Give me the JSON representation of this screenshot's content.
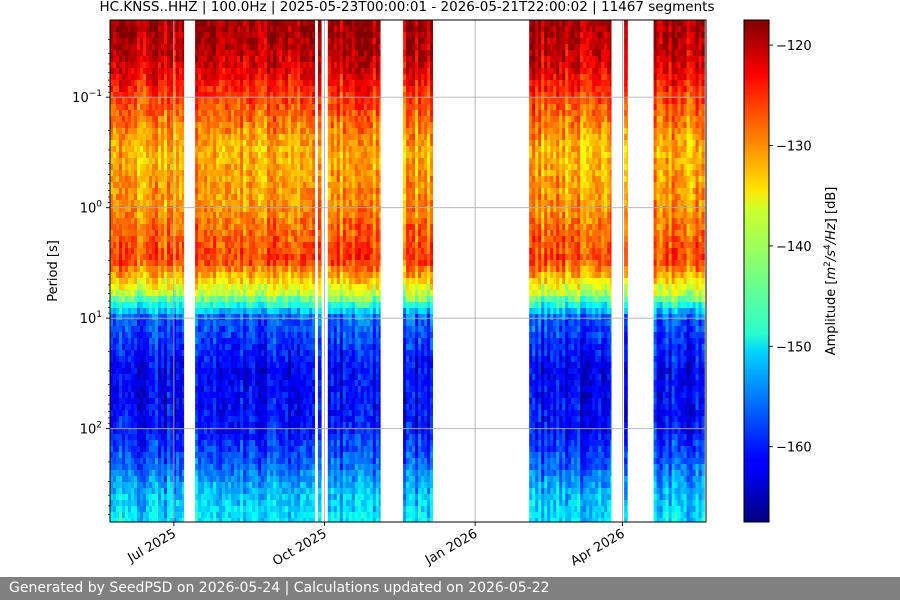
{
  "chart_data": {
    "type": "heatmap",
    "title": "HC.KNSS..HHZ | 100.0Hz | 2025-05-23T00:00:01 - 2026-05-21T22:00:02 | 11467 segments",
    "xlabel": "",
    "ylabel": "Period [s]",
    "colorbar_label": "Amplitude [m²/s⁴/Hz] [dB]",
    "colorbar_label_parts": {
      "pre": "Amplitude [",
      "m": "m",
      "exp2": "2",
      "slash1": "/",
      "s": "s",
      "exp4": "4",
      "slash2": "/",
      "hz": "Hz",
      "post": "] [dB]"
    },
    "xlim": [
      "2025-05-23",
      "2026-05-22"
    ],
    "ylim": [
      700,
      0.02
    ],
    "y_scale": "log",
    "clim": [
      -167.5,
      -117.5
    ],
    "colormap": "jet",
    "grid": true,
    "x_ticks": [
      {
        "date": "2025-07-01",
        "label": "Jul 2025"
      },
      {
        "date": "2025-10-01",
        "label": "Oct 2025"
      },
      {
        "date": "2026-01-01",
        "label": "Jan 2026"
      },
      {
        "date": "2026-04-01",
        "label": "Apr 2026"
      }
    ],
    "y_ticks": [
      {
        "value": 0.1,
        "base": "10",
        "exp": "−1"
      },
      {
        "value": 1,
        "base": "10",
        "exp": "0"
      },
      {
        "value": 10,
        "base": "10",
        "exp": "1"
      },
      {
        "value": 100,
        "base": "10",
        "exp": "2"
      }
    ],
    "colorbar_ticks": [
      -120,
      -130,
      -140,
      -150,
      -160
    ],
    "colorbar_tick_labels": [
      "−120",
      "−130",
      "−140",
      "−150",
      "−160"
    ],
    "data_periods": [
      {
        "start": "2025-05-23",
        "end": "2025-07-07"
      },
      {
        "start": "2025-07-14",
        "end": "2025-09-25"
      },
      {
        "start": "2025-09-27",
        "end": "2025-09-29"
      },
      {
        "start": "2025-10-03",
        "end": "2025-11-04"
      },
      {
        "start": "2025-11-18",
        "end": "2025-12-06"
      },
      {
        "start": "2026-02-03",
        "end": "2026-03-25"
      },
      {
        "start": "2026-04-02",
        "end": "2026-04-04"
      },
      {
        "start": "2026-04-20",
        "end": "2026-05-21"
      }
    ],
    "amplitude_profile": [
      {
        "period": 0.02,
        "amplitude_db": -119
      },
      {
        "period": 0.05,
        "amplitude_db": -122
      },
      {
        "period": 0.1,
        "amplitude_db": -127
      },
      {
        "period": 0.3,
        "amplitude_db": -133
      },
      {
        "period": 1,
        "amplitude_db": -131
      },
      {
        "period": 3,
        "amplitude_db": -127
      },
      {
        "period": 6,
        "amplitude_db": -140
      },
      {
        "period": 10,
        "amplitude_db": -157
      },
      {
        "period": 30,
        "amplitude_db": -162
      },
      {
        "period": 100,
        "amplitude_db": -161
      },
      {
        "period": 200,
        "amplitude_db": -157
      },
      {
        "period": 400,
        "amplitude_db": -152
      },
      {
        "period": 700,
        "amplitude_db": -150
      }
    ]
  },
  "footer": {
    "text": "Generated by SeedPSD on 2026-05-24 | Calculations updated on 2026-05-22"
  }
}
